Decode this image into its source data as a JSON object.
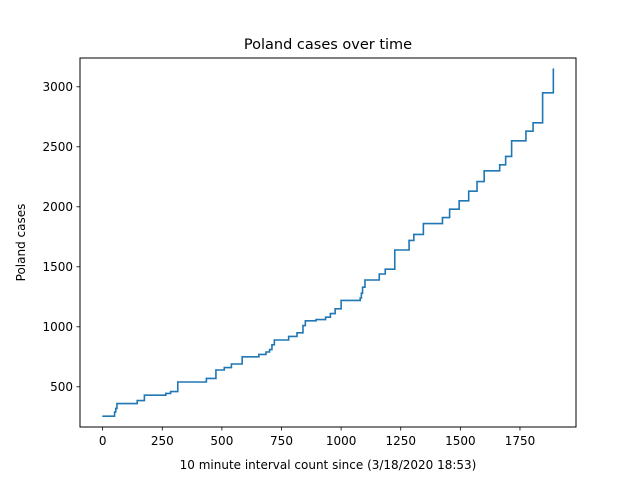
{
  "chart_data": {
    "type": "line",
    "title": "Poland cases over time",
    "xlabel": "10 minute interval count since (3/18/2020 18:53)",
    "ylabel": "Poland cases",
    "xlim": [
      -95,
      1985
    ],
    "ylim": [
      165,
      3240
    ],
    "grid": false,
    "legend": "none",
    "line_color": "#1f77b4",
    "xticks": [
      0,
      250,
      500,
      750,
      1000,
      1250,
      1500,
      1750
    ],
    "yticks": [
      500,
      1000,
      1500,
      2000,
      2500,
      3000
    ],
    "series": [
      {
        "step": "post",
        "x": [
          0,
          50,
          55,
          60,
          145,
          175,
          265,
          285,
          315,
          435,
          475,
          510,
          540,
          585,
          655,
          685,
          700,
          710,
          720,
          780,
          815,
          840,
          850,
          895,
          935,
          955,
          975,
          1000,
          1080,
          1085,
          1090,
          1100,
          1160,
          1185,
          1225,
          1285,
          1305,
          1345,
          1425,
          1455,
          1495,
          1535,
          1570,
          1600,
          1665,
          1690,
          1715,
          1775,
          1805,
          1845,
          1890
        ],
        "y": [
          255,
          290,
          320,
          360,
          385,
          430,
          445,
          460,
          540,
          570,
          640,
          660,
          690,
          750,
          770,
          790,
          810,
          850,
          890,
          920,
          950,
          1010,
          1050,
          1060,
          1080,
          1110,
          1150,
          1220,
          1240,
          1280,
          1330,
          1390,
          1440,
          1480,
          1640,
          1720,
          1770,
          1860,
          1910,
          1980,
          2050,
          2130,
          2210,
          2300,
          2350,
          2420,
          2550,
          2630,
          2700,
          2950,
          3150
        ]
      }
    ]
  }
}
